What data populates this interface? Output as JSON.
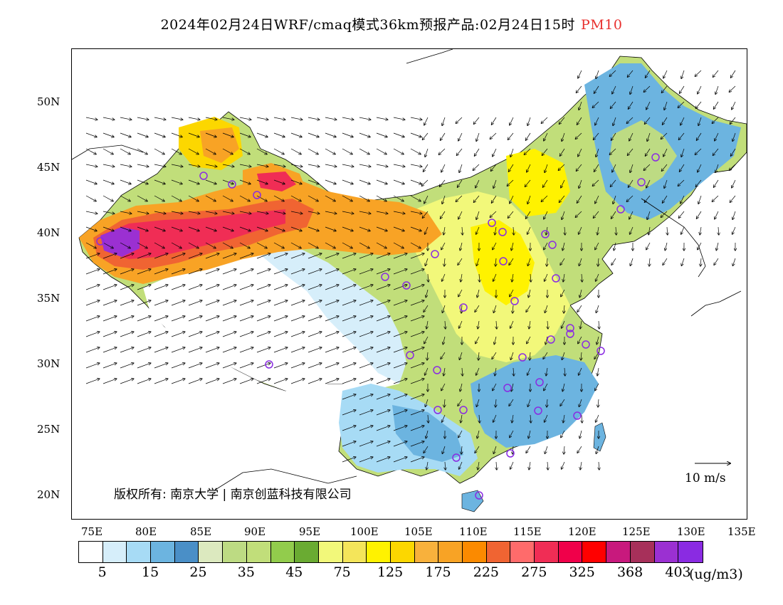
{
  "title": {
    "main": "2024年02月24日WRF/cmaq模式36km预报产品:02月24日15时",
    "variable": "PM10",
    "variable_color": "#e8302e"
  },
  "map": {
    "lat_labels": [
      "50N",
      "45N",
      "40N",
      "35N",
      "30N",
      "25N",
      "20N"
    ],
    "lon_labels": [
      "75E",
      "80E",
      "85E",
      "90E",
      "95E",
      "100E",
      "105E",
      "110E",
      "115E",
      "120E",
      "125E",
      "130E",
      "135E"
    ],
    "copyright": "版权所有: 南京大学 | 南京创蓝科技有限公司",
    "wind_scale_label": "10 m/s",
    "station_marker_color": "#8a2be2"
  },
  "colorbar": {
    "colors": [
      "#ffffff",
      "#d6eefa",
      "#a7dbf5",
      "#6cb4e0",
      "#4a8fc7",
      "#dce9bf",
      "#bddb83",
      "#c1de7a",
      "#92cc4c",
      "#6aab32",
      "#f2f87a",
      "#f4e55a",
      "#fff200",
      "#fcd700",
      "#f8b13c",
      "#f8a325",
      "#fb8a00",
      "#f06432",
      "#ff6b6b",
      "#f02d55",
      "#f0004a",
      "#ff0000",
      "#c8197d",
      "#a7305a",
      "#9b30d2",
      "#8a2be2"
    ],
    "labels": [
      "5",
      "15",
      "25",
      "35",
      "45",
      "75",
      "125",
      "175",
      "225",
      "275",
      "325",
      "368",
      "403"
    ],
    "unit": "(ug/m3)"
  }
}
